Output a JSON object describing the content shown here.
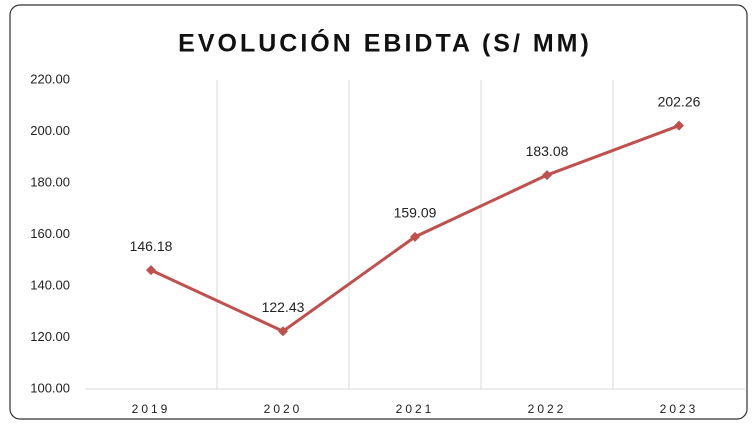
{
  "chart_data": {
    "type": "line",
    "title": "EVOLUCIÓN EBIDTA (S/ MM)",
    "categories": [
      "2019",
      "2020",
      "2021",
      "2022",
      "2023"
    ],
    "series": [
      {
        "name": "EBIDTA",
        "color": "#c0504d",
        "values": [
          146.18,
          122.43,
          159.09,
          183.08,
          202.26
        ]
      }
    ],
    "ylim": [
      100,
      220
    ],
    "yticks": [
      {
        "value": 100,
        "label": "100.00"
      },
      {
        "value": 120,
        "label": "120.00"
      },
      {
        "value": 140,
        "label": "140.00"
      },
      {
        "value": 160,
        "label": "160.00"
      },
      {
        "value": 180,
        "label": "180.00"
      },
      {
        "value": 200,
        "label": "200.00"
      },
      {
        "value": 220,
        "label": "220.00"
      }
    ],
    "grid": true,
    "legend": false
  }
}
